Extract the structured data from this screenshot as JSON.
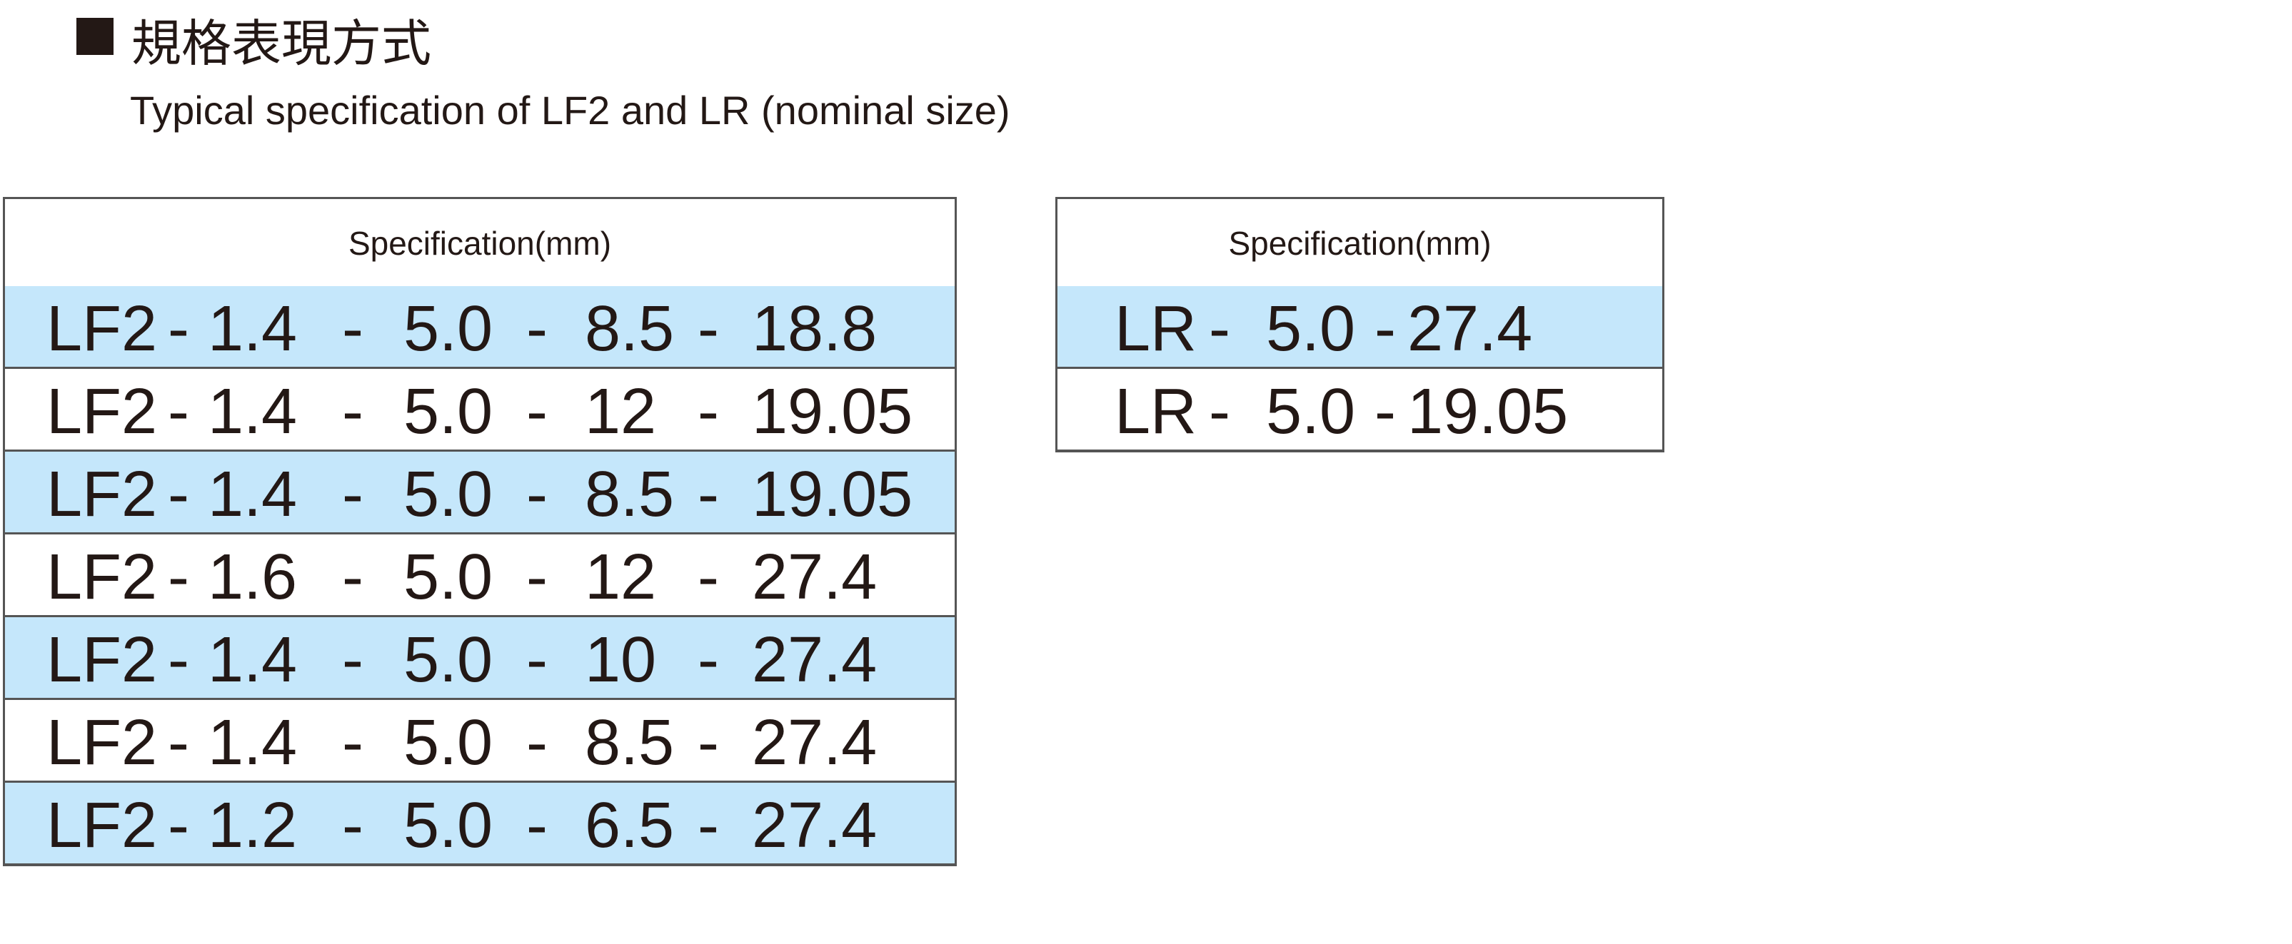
{
  "header": {
    "title": "規格表現方式",
    "subtitle": "Typical specification of LF2 and LR (nominal size)"
  },
  "tables": [
    {
      "header": "Specification(mm)",
      "rows": [
        [
          "LF2",
          "-",
          "1.4",
          "-",
          "5.0",
          "-",
          "8.5",
          "-",
          "18.8"
        ],
        [
          "LF2",
          "-",
          "1.4",
          "-",
          "5.0",
          "-",
          "12",
          "-",
          "19.05"
        ],
        [
          "LF2",
          "-",
          "1.4",
          "-",
          "5.0",
          "-",
          "8.5",
          "-",
          "19.05"
        ],
        [
          "LF2",
          "-",
          "1.6",
          "-",
          "5.0",
          "-",
          "12",
          "-",
          "27.4"
        ],
        [
          "LF2",
          "-",
          "1.4",
          "-",
          "5.0",
          "-",
          "10",
          "-",
          "27.4"
        ],
        [
          "LF2",
          "-",
          "1.4",
          "-",
          "5.0",
          "-",
          "8.5",
          "-",
          "27.4"
        ],
        [
          "LF2",
          "-",
          "1.2",
          "-",
          "5.0",
          "-",
          "6.5",
          "-",
          "27.4"
        ]
      ]
    },
    {
      "header": "Specification(mm)",
      "rows": [
        [
          "LR",
          "-",
          "5.0",
          "-",
          "27.4"
        ],
        [
          "LR",
          "-",
          "5.0",
          "-",
          "19.05"
        ]
      ]
    }
  ]
}
